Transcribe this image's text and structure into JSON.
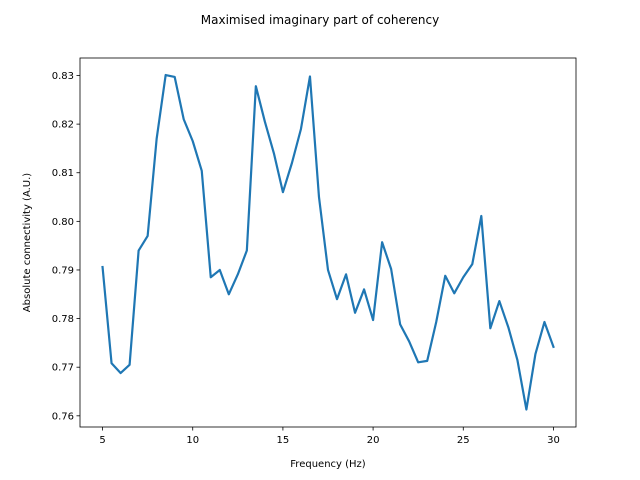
{
  "chart_data": {
    "type": "line",
    "title": "Maximised imaginary part of coherency",
    "xlabel": "Frequency (Hz)",
    "ylabel": "Absolute connectivity (A.U.)",
    "xlim": [
      3.75,
      31.25
    ],
    "ylim": [
      0.7577,
      0.8336
    ],
    "xticks": [
      5,
      10,
      15,
      20,
      25,
      30
    ],
    "xtick_labels": [
      "5",
      "10",
      "15",
      "20",
      "25",
      "30"
    ],
    "yticks": [
      0.76,
      0.77,
      0.78,
      0.79,
      0.8,
      0.81,
      0.82,
      0.83
    ],
    "ytick_labels": [
      "0.76",
      "0.77",
      "0.78",
      "0.79",
      "0.80",
      "0.81",
      "0.82",
      "0.83"
    ],
    "grid": false,
    "series": [
      {
        "color": "#1f77b4",
        "x": [
          5.0,
          5.5,
          6.0,
          6.5,
          7.0,
          7.5,
          8.0,
          8.5,
          9.0,
          9.5,
          10.0,
          10.5,
          11.0,
          11.5,
          12.0,
          12.5,
          13.0,
          13.5,
          14.0,
          14.5,
          15.0,
          15.5,
          16.0,
          16.5,
          17.0,
          17.5,
          18.0,
          18.5,
          19.0,
          19.5,
          20.0,
          20.5,
          21.0,
          21.5,
          22.0,
          22.5,
          23.0,
          23.5,
          24.0,
          24.5,
          25.0,
          25.5,
          26.0,
          26.5,
          27.0,
          27.5,
          28.0,
          28.5,
          29.0,
          29.5,
          30.0
        ],
        "y": [
          0.7906,
          0.7708,
          0.7688,
          0.7705,
          0.794,
          0.797,
          0.817,
          0.8301,
          0.8297,
          0.821,
          0.8165,
          0.8104,
          0.7885,
          0.79,
          0.785,
          0.7891,
          0.794,
          0.8278,
          0.8205,
          0.814,
          0.806,
          0.812,
          0.819,
          0.8298,
          0.805,
          0.79,
          0.784,
          0.7891,
          0.7812,
          0.786,
          0.7797,
          0.7957,
          0.7902,
          0.7788,
          0.7753,
          0.771,
          0.7713,
          0.7793,
          0.7888,
          0.7852,
          0.7885,
          0.7912,
          0.8011,
          0.778,
          0.7836,
          0.7782,
          0.7715,
          0.7613,
          0.7727,
          0.7793,
          0.7742
        ]
      }
    ]
  }
}
